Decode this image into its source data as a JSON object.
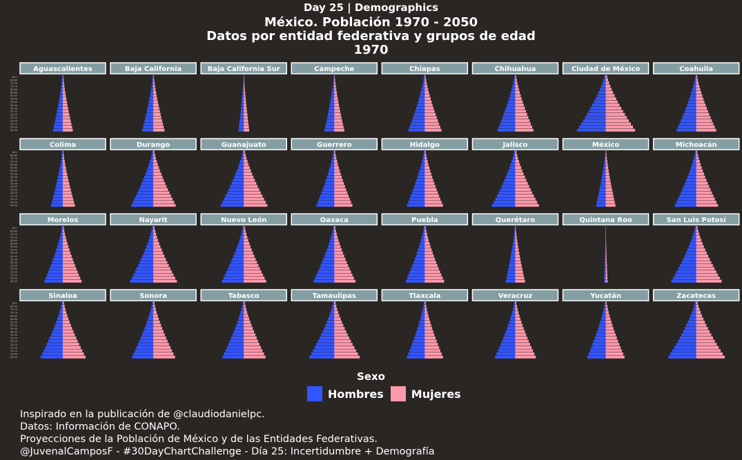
{
  "header": {
    "day": "Day 25 | Demographics",
    "title": "México. Población 1970 - 2050",
    "subtitle": "Datos por entidad federativa y grupos de edad",
    "year": "1970"
  },
  "legend": {
    "title": "Sexo",
    "items": [
      {
        "label": "Hombres",
        "color": "#3355ff"
      },
      {
        "label": "Mujeres",
        "color": "#ff9aad"
      }
    ]
  },
  "caption": [
    "Inspirado en la publicación de @claudiodanielpc.",
    "Datos: Información de CONAPO.",
    "Proyecciones de la Población de México y de las Entidades Federativas.",
    "@JuvenalCamposF - #30DayChartChallenge - Día 25: Incertidumbre + Demografía"
  ],
  "chart_data": {
    "type": "bar",
    "orientation": "horizontal-pyramid",
    "age_groups": [
      "00-04",
      "05-09",
      "10-14",
      "15-19",
      "20-24",
      "25-29",
      "30-34",
      "35-39",
      "40-44",
      "45-49",
      "50-54",
      "55-59",
      "60-64",
      "65-69",
      "70-74",
      "75-79",
      "80-84",
      "85+"
    ],
    "series": [
      {
        "name": "Hombres"
      },
      {
        "name": "Mujeres"
      }
    ],
    "colors": {
      "Hombres": "#3355ff",
      "Mujeres": "#ff9aad",
      "strip": "#849ea3"
    },
    "panels": [
      {
        "state": "Aguascalientes",
        "width": 0.33
      },
      {
        "state": "Baja California",
        "width": 0.37
      },
      {
        "state": "Baja California Sur",
        "width": 0.18
      },
      {
        "state": "Campeche",
        "width": 0.33
      },
      {
        "state": "Chiapas",
        "width": 0.55
      },
      {
        "state": "Chihuahua",
        "width": 0.6
      },
      {
        "state": "Ciudad de México",
        "width": 0.97
      },
      {
        "state": "Coahuila",
        "width": 0.66
      },
      {
        "state": "Colima",
        "width": 0.4
      },
      {
        "state": "Durango",
        "width": 0.74
      },
      {
        "state": "Guanajuato",
        "width": 0.78
      },
      {
        "state": "Guerrero",
        "width": 0.6
      },
      {
        "state": "Hidalgo",
        "width": 0.6
      },
      {
        "state": "Jalisco",
        "width": 0.78
      },
      {
        "state": "México",
        "width": 0.32
      },
      {
        "state": "Michoacán",
        "width": 0.72
      },
      {
        "state": "Morelos",
        "width": 0.62
      },
      {
        "state": "Nayarit",
        "width": 0.78
      },
      {
        "state": "Nuevo León",
        "width": 0.74
      },
      {
        "state": "Oaxaca",
        "width": 0.7
      },
      {
        "state": "Puebla",
        "width": 0.64
      },
      {
        "state": "Querétaro",
        "width": 0.32
      },
      {
        "state": "Quintana Roo",
        "width": 0.06
      },
      {
        "state": "San Luis Potosí",
        "width": 0.84
      },
      {
        "state": "Sinaloa",
        "width": 0.75
      },
      {
        "state": "Sonora",
        "width": 0.72
      },
      {
        "state": "Tabasco",
        "width": 0.72
      },
      {
        "state": "Tamaulipas",
        "width": 0.84
      },
      {
        "state": "Tlaxcala",
        "width": 0.6
      },
      {
        "state": "Veracruz",
        "width": 0.68
      },
      {
        "state": "Yucatán",
        "width": 0.62
      },
      {
        "state": "Zacatecas",
        "width": 0.94
      }
    ]
  }
}
